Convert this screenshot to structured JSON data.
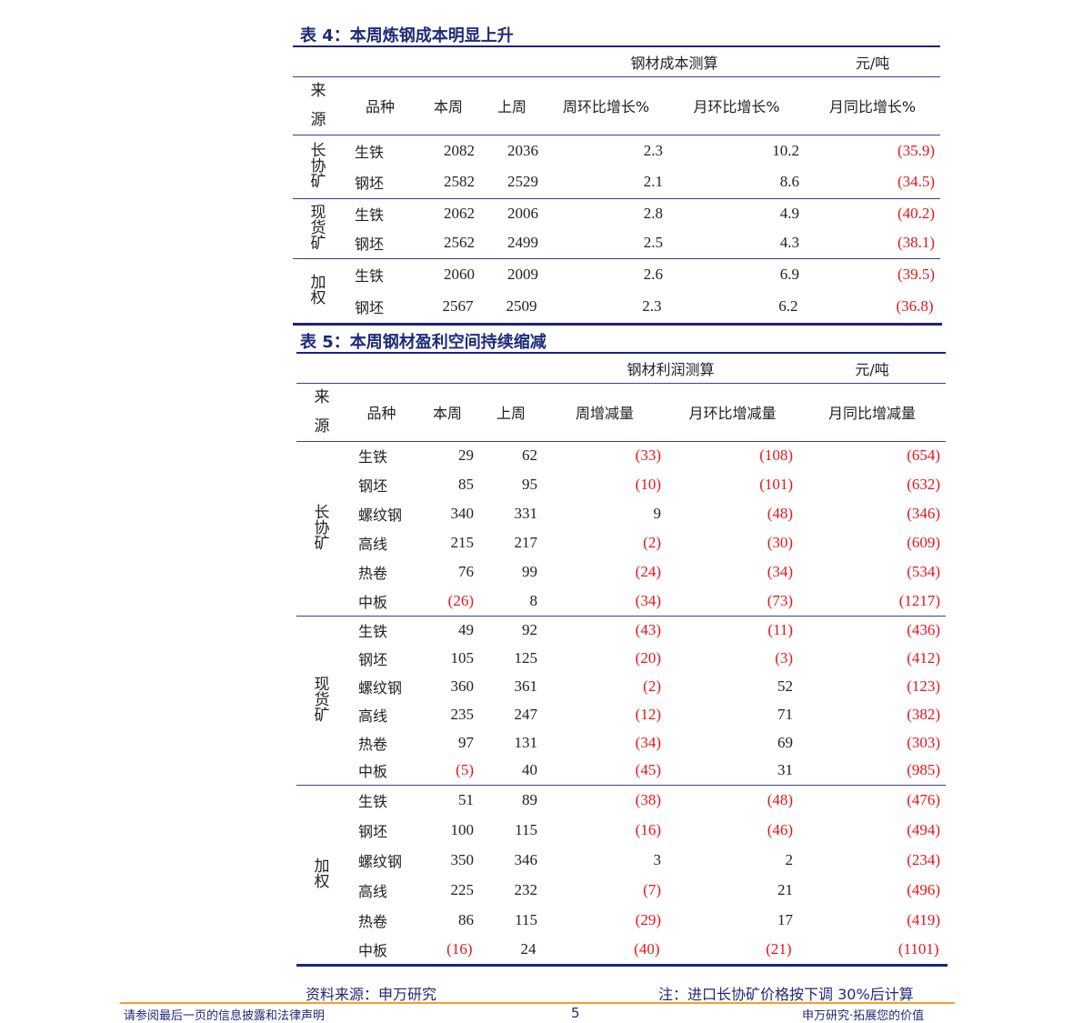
{
  "table4": {
    "title": "表 4：本周炼钢成本明显上升",
    "group_header": "钢材成本测算",
    "unit": "元/吨",
    "headers": [
      "来\n\n源",
      "品种",
      "本周",
      "上周",
      "周环比增长%",
      "月环比增长%",
      "月同比增长%"
    ],
    "groups": [
      {
        "source": "长协矿",
        "rows": [
          [
            "生铁",
            "2082",
            "2036",
            "2.3",
            "10.2",
            "(35.9)"
          ],
          [
            "钢坯",
            "2582",
            "2529",
            "2.1",
            "8.6",
            "(34.5)"
          ]
        ]
      },
      {
        "source": "现货矿",
        "rows": [
          [
            "生铁",
            "2062",
            "2006",
            "2.8",
            "4.9",
            "(40.2)"
          ],
          [
            "钢坯",
            "2562",
            "2499",
            "2.5",
            "4.3",
            "(38.1)"
          ]
        ]
      },
      {
        "source": "加权",
        "rows": [
          [
            "生铁",
            "2060",
            "2009",
            "2.6",
            "6.9",
            "(39.5)"
          ],
          [
            "钢坯",
            "2567",
            "2509",
            "2.3",
            "6.2",
            "(36.8)"
          ]
        ]
      }
    ]
  },
  "table5": {
    "title": "表 5：本周钢材盈利空间持续缩减",
    "group_header": "钢材利润测算",
    "unit": "元/吨",
    "headers": [
      "来\n\n源",
      "品种",
      "本周",
      "上周",
      "周增减量",
      "月环比增减量",
      "月同比增减量"
    ],
    "groups": [
      {
        "source": "长协矿",
        "rows": [
          [
            "生铁",
            "29",
            "62",
            "(33)",
            "(108)",
            "(654)"
          ],
          [
            "钢坯",
            "85",
            "95",
            "(10)",
            "(101)",
            "(632)"
          ],
          [
            "螺纹钢",
            "340",
            "331",
            "9",
            "(48)",
            "(346)"
          ],
          [
            "高线",
            "215",
            "217",
            "(2)",
            "(30)",
            "(609)"
          ],
          [
            "热卷",
            "76",
            "99",
            "(24)",
            "(34)",
            "(534)"
          ],
          [
            "中板",
            "(26)",
            "8",
            "(34)",
            "(73)",
            "(1217)"
          ]
        ]
      },
      {
        "source": "现货矿",
        "rows": [
          [
            "生铁",
            "49",
            "92",
            "(43)",
            "(11)",
            "(436)"
          ],
          [
            "钢坯",
            "105",
            "125",
            "(20)",
            "(3)",
            "(412)"
          ],
          [
            "螺纹钢",
            "360",
            "361",
            "(2)",
            "52",
            "(123)"
          ],
          [
            "高线",
            "235",
            "247",
            "(12)",
            "71",
            "(382)"
          ],
          [
            "热卷",
            "97",
            "131",
            "(34)",
            "69",
            "(303)"
          ],
          [
            "中板",
            "(5)",
            "40",
            "(45)",
            "31",
            "(985)"
          ]
        ]
      },
      {
        "source": "加权",
        "rows": [
          [
            "生铁",
            "51",
            "89",
            "(38)",
            "(48)",
            "(476)"
          ],
          [
            "钢坯",
            "100",
            "115",
            "(16)",
            "(46)",
            "(494)"
          ],
          [
            "螺纹钢",
            "350",
            "346",
            "3",
            "2",
            "(234)"
          ],
          [
            "高线",
            "225",
            "232",
            "(7)",
            "21",
            "(496)"
          ],
          [
            "热卷",
            "86",
            "115",
            "(29)",
            "17",
            "(419)"
          ],
          [
            "中板",
            "(16)",
            "24",
            "(40)",
            "(21)",
            "(1101)"
          ]
        ]
      }
    ]
  },
  "source_note": "资料来源：申万研究",
  "footnote": "注：进口长协矿价格按下调 30%后计算",
  "footer": {
    "disclaimer": "请参阅最后一页的信息披露和法律声明",
    "page": "5",
    "slogan": "申万研究·拓展您的价值"
  },
  "colors": {
    "title": "#1f2a7a",
    "negative": "#e8141a",
    "rule": "#1a237e",
    "footer_rule": "#f5a021"
  }
}
